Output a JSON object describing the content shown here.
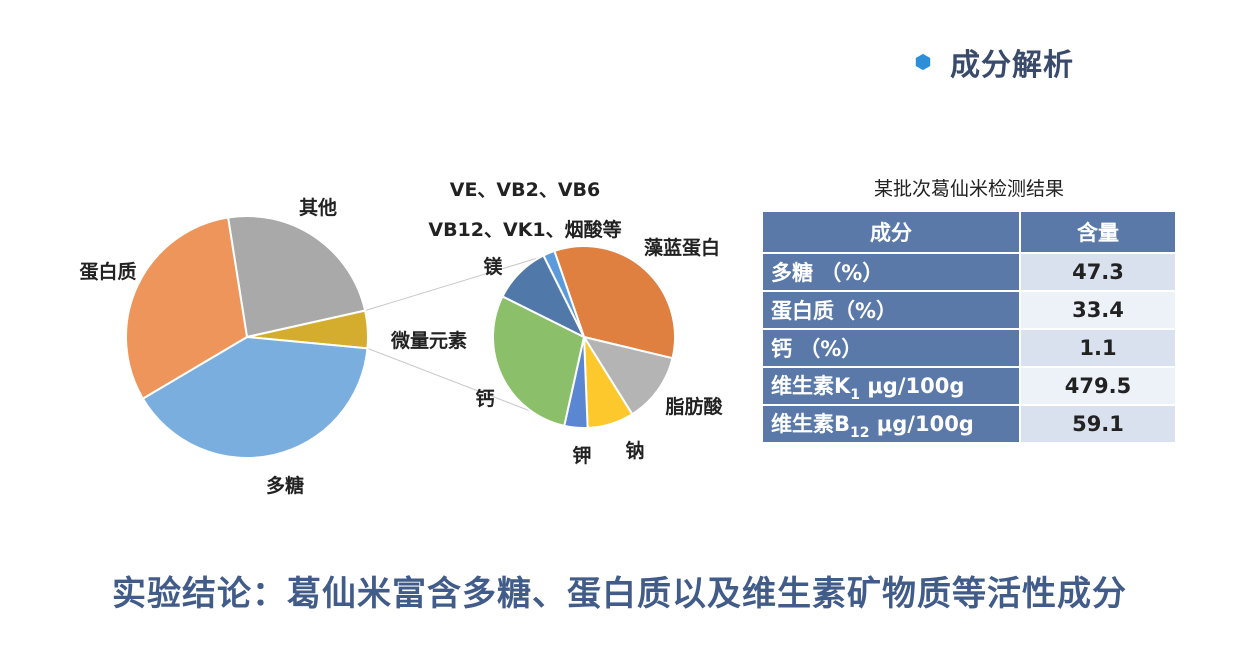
{
  "header": {
    "title": "成分解析",
    "icon": "hexagon-bullet",
    "icon_color": "#2d8fd9"
  },
  "chart_data": [
    {
      "type": "pie",
      "categories": [
        "其他",
        "微量元素",
        "多糖",
        "蛋白质"
      ],
      "values": [
        24,
        5,
        40,
        31
      ],
      "colors": [
        "#a9a9a9",
        "#d4ad2e",
        "#7aaedf",
        "#ed955a"
      ]
    },
    {
      "type": "pie",
      "categories": [
        "藻蓝蛋白",
        "脂肪酸",
        "钠",
        "钾",
        "钙",
        "镁",
        "VE、VB2、VB6 VB12、VK1、烟酸等"
      ],
      "values": [
        33,
        12,
        8,
        4,
        28,
        10,
        2
      ],
      "colors": [
        "#df7f40",
        "#b4b4b4",
        "#fcc82c",
        "#5b86d1",
        "#8cbf6a",
        "#5078a8",
        "#5b9bdc"
      ]
    }
  ],
  "pie_labels": {
    "other": "其他",
    "protein": "蛋白质",
    "trace": "微量元素",
    "polysaccharide": "多糖",
    "vitamins_line1": "VE、VB2、VB6",
    "vitamins_line2": "VB12、VK1、烟酸等",
    "phycocyanin": "藻蓝蛋白",
    "magnesium": "镁",
    "calcium": "钙",
    "fatty_acid": "脂肪酸",
    "sodium": "钠",
    "potassium": "钾"
  },
  "table": {
    "title": "某批次葛仙米检测结果",
    "headers": [
      "成分",
      "含量"
    ],
    "rows": [
      {
        "name": "多糖 （%）",
        "value": "47.3"
      },
      {
        "name": "蛋白质（%）",
        "value": "33.4"
      },
      {
        "name": "钙 （%）",
        "value": "1.1"
      },
      {
        "name_main": "维生素K",
        "name_sub": "1",
        "name_unit": " μg/100g",
        "value": "479.5"
      },
      {
        "name_main": "维生素B",
        "name_sub": "12",
        "name_unit": " μg/100g",
        "value": "59.1"
      }
    ]
  },
  "conclusion": "实验结论：葛仙米富含多糖、蛋白质以及维生素矿物质等活性成分"
}
